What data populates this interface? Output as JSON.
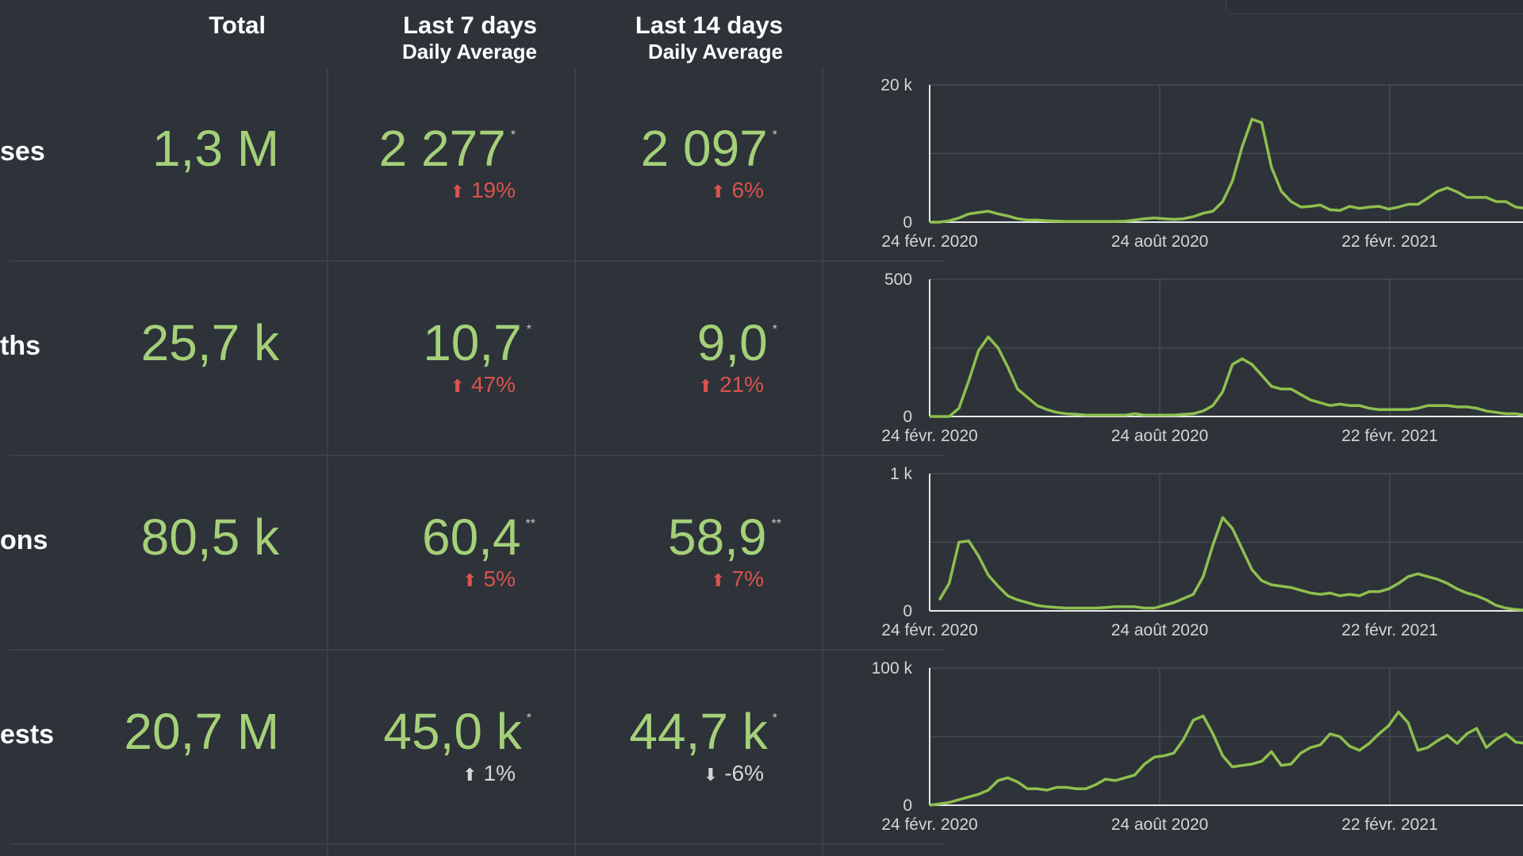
{
  "header": {
    "total": "Total",
    "last7": "Last 7 days",
    "last7_sub": "Daily Average",
    "last14": "Last 14 days",
    "last14_sub": "Daily Average"
  },
  "rows": [
    {
      "label": "ses",
      "total": "1,3 M",
      "avg7": "2 277",
      "avg7_mark": "*",
      "chg7": "19%",
      "dir7": "up",
      "avg14": "2 097",
      "avg14_mark": "*",
      "chg14": "6%",
      "dir14": "up"
    },
    {
      "label": "ths",
      "total": "25,7 k",
      "avg7": "10,7",
      "avg7_mark": "*",
      "chg7": "47%",
      "dir7": "up",
      "avg14": "9,0",
      "avg14_mark": "*",
      "chg14": "21%",
      "dir14": "up"
    },
    {
      "label": "ons",
      "total": "80,5 k",
      "avg7": "60,4",
      "avg7_mark": "**",
      "chg7": "5%",
      "dir7": "up",
      "avg14": "58,9",
      "avg14_mark": "**",
      "chg14": "7%",
      "dir14": "up"
    },
    {
      "label": "ests",
      "total": "20,7 M",
      "avg7": "45,0 k",
      "avg7_mark": "*",
      "chg7": "1%",
      "dir7": "up-neutral",
      "avg14": "44,7 k",
      "avg14_mark": "*",
      "chg14": "-6%",
      "dir14": "down-neutral"
    }
  ],
  "colors": {
    "background": "#2d3338",
    "value_green": "#a5d07a",
    "line_green": "#8fbf4f",
    "increase_red": "#d9534f",
    "neutral": "#d6d6d6"
  },
  "icons": {
    "up": "arrow-up-icon",
    "down": "arrow-down-icon"
  },
  "chart_data": [
    {
      "type": "line",
      "x_ticks": [
        "24 févr. 2020",
        "24 août 2020",
        "22 févr. 2021"
      ],
      "ylim": [
        0,
        20000
      ],
      "y_ticks": [
        "0",
        "20 k"
      ],
      "grid": true,
      "x": [
        0,
        1,
        2,
        3,
        4,
        5,
        6,
        7,
        8,
        9,
        10,
        11,
        12,
        13,
        14,
        15,
        16,
        17,
        18,
        19,
        20,
        21,
        22,
        23,
        24,
        25,
        26,
        27,
        28,
        29,
        30,
        31,
        32,
        33,
        34,
        35,
        36,
        37,
        38,
        39,
        40,
        41,
        42,
        43,
        44,
        45,
        46,
        47,
        48,
        49,
        50,
        51,
        52,
        53,
        54,
        55,
        56,
        57,
        58,
        59,
        60,
        61,
        62,
        63,
        64,
        65
      ],
      "values": [
        0,
        0,
        200,
        600,
        1200,
        1400,
        1600,
        1200,
        900,
        500,
        300,
        300,
        200,
        150,
        100,
        100,
        100,
        100,
        100,
        100,
        150,
        300,
        500,
        600,
        500,
        400,
        500,
        800,
        1300,
        1600,
        3000,
        6000,
        11000,
        15000,
        14500,
        8000,
        4500,
        3000,
        2200,
        2300,
        2500,
        1800,
        1700,
        2300,
        2000,
        2200,
        2300,
        1900,
        2200,
        2600,
        2600,
        3500,
        4500,
        5000,
        4400,
        3600,
        3600,
        3600,
        3000,
        3000,
        2200,
        2000,
        1500,
        1000,
        600,
        300
      ]
    },
    {
      "type": "line",
      "x_ticks": [
        "24 févr. 2020",
        "24 août 2020",
        "22 févr. 2021"
      ],
      "ylim": [
        0,
        500
      ],
      "y_ticks": [
        "0",
        "500"
      ],
      "grid": true,
      "x": [
        0,
        1,
        2,
        3,
        4,
        5,
        6,
        7,
        8,
        9,
        10,
        11,
        12,
        13,
        14,
        15,
        16,
        17,
        18,
        19,
        20,
        21,
        22,
        23,
        24,
        25,
        26,
        27,
        28,
        29,
        30,
        31,
        32,
        33,
        34,
        35,
        36,
        37,
        38,
        39,
        40,
        41,
        42,
        43,
        44,
        45,
        46,
        47,
        48,
        49,
        50,
        51,
        52,
        53,
        54,
        55,
        56,
        57,
        58,
        59,
        60,
        61,
        62,
        63,
        64,
        65
      ],
      "values": [
        0,
        0,
        0,
        30,
        130,
        240,
        290,
        250,
        180,
        100,
        70,
        40,
        25,
        15,
        10,
        8,
        5,
        5,
        5,
        5,
        5,
        10,
        5,
        5,
        5,
        5,
        8,
        10,
        20,
        40,
        90,
        190,
        210,
        190,
        150,
        110,
        100,
        100,
        80,
        60,
        50,
        40,
        45,
        40,
        40,
        30,
        25,
        25,
        25,
        25,
        30,
        40,
        40,
        40,
        35,
        35,
        30,
        20,
        15,
        10,
        10,
        5,
        5,
        5,
        5,
        5
      ]
    },
    {
      "type": "line",
      "x_ticks": [
        "24 févr. 2020",
        "24 août 2020",
        "22 févr. 2021"
      ],
      "ylim": [
        0,
        1000
      ],
      "y_ticks": [
        "0",
        "1 k"
      ],
      "grid": true,
      "x": [
        1,
        2,
        3,
        4,
        5,
        6,
        7,
        8,
        9,
        10,
        11,
        12,
        13,
        14,
        15,
        16,
        17,
        18,
        19,
        20,
        21,
        22,
        23,
        24,
        25,
        26,
        27,
        28,
        29,
        30,
        31,
        32,
        33,
        34,
        35,
        36,
        37,
        38,
        39,
        40,
        41,
        42,
        43,
        44,
        45,
        46,
        47,
        48,
        49,
        50,
        51,
        52,
        53,
        54,
        55,
        56,
        57,
        58,
        59,
        60,
        61,
        62,
        63,
        64,
        65
      ],
      "values": [
        80,
        200,
        500,
        510,
        400,
        260,
        180,
        110,
        80,
        60,
        40,
        30,
        25,
        20,
        20,
        20,
        20,
        25,
        30,
        30,
        30,
        20,
        20,
        40,
        60,
        90,
        120,
        250,
        480,
        680,
        600,
        450,
        300,
        220,
        190,
        180,
        170,
        150,
        130,
        120,
        130,
        110,
        120,
        110,
        140,
        140,
        160,
        200,
        250,
        270,
        250,
        230,
        200,
        160,
        130,
        110,
        80,
        40,
        20,
        10,
        5,
        5,
        5,
        5,
        5
      ]
    },
    {
      "type": "line",
      "x_ticks": [
        "24 févr. 2020",
        "24 août 2020",
        "22 févr. 2021"
      ],
      "ylim": [
        0,
        100000
      ],
      "y_ticks": [
        "0",
        "100 k"
      ],
      "grid": true,
      "x": [
        0,
        1,
        2,
        3,
        4,
        5,
        6,
        7,
        8,
        9,
        10,
        11,
        12,
        13,
        14,
        15,
        16,
        17,
        18,
        19,
        20,
        21,
        22,
        23,
        24,
        25,
        26,
        27,
        28,
        29,
        30,
        31,
        32,
        33,
        34,
        35,
        36,
        37,
        38,
        39,
        40,
        41,
        42,
        43,
        44,
        45,
        46,
        47,
        48,
        49,
        50,
        51,
        52,
        53,
        54,
        55,
        56,
        57,
        58,
        59,
        60,
        61,
        62,
        63,
        64,
        65
      ],
      "values": [
        0,
        1000,
        2000,
        4000,
        6000,
        8000,
        11000,
        18000,
        20000,
        17000,
        12000,
        12000,
        11000,
        13000,
        13000,
        12000,
        12000,
        15000,
        19000,
        18000,
        20000,
        22000,
        30000,
        35000,
        36000,
        38000,
        48000,
        62000,
        65000,
        52000,
        36000,
        28000,
        29000,
        30000,
        32000,
        39000,
        29000,
        30000,
        38000,
        42000,
        44000,
        52000,
        50000,
        43000,
        40000,
        45000,
        52000,
        58000,
        68000,
        60000,
        40000,
        42000,
        47000,
        51000,
        45000,
        52000,
        56000,
        42000,
        48000,
        52000,
        46000,
        45000,
        47000,
        40000,
        38000,
        35000
      ]
    }
  ]
}
